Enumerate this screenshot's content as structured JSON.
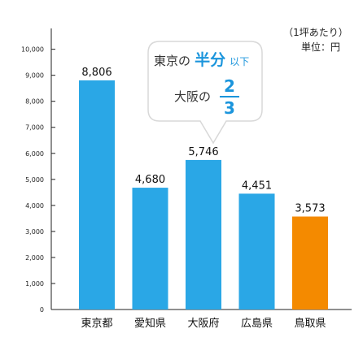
{
  "chart_data": {
    "type": "bar",
    "categories": [
      "東京都",
      "愛知県",
      "大阪府",
      "広島県",
      "鳥取県"
    ],
    "values": [
      8806,
      4680,
      5746,
      4451,
      3573
    ],
    "value_labels": [
      "8,806",
      "4,680",
      "5,746",
      "4,451",
      "3,573"
    ],
    "y_ticks": [
      0,
      1000,
      2000,
      3000,
      4000,
      5000,
      6000,
      7000,
      8000,
      9000,
      10000
    ],
    "y_tick_labels": [
      "0",
      "1,000",
      "2,000",
      "3,000",
      "4,000",
      "5,000",
      "6,000",
      "7,000",
      "8,000",
      "9,000",
      "10,000"
    ],
    "ylim": [
      0,
      10800
    ],
    "grid": false,
    "legend": "none",
    "colors": {
      "default": "#2aa7e6",
      "highlight": "#f48a00"
    },
    "highlight_index": 4,
    "unit_note_line1": "（1坪あたり）",
    "unit_note_line2": "単位：円",
    "callout": {
      "line1_prefix": "東京の",
      "line1_emphasis": "半分",
      "line1_suffix": "以下",
      "line2_prefix": "大阪の",
      "fraction_numerator": "2",
      "fraction_denominator": "3"
    }
  }
}
